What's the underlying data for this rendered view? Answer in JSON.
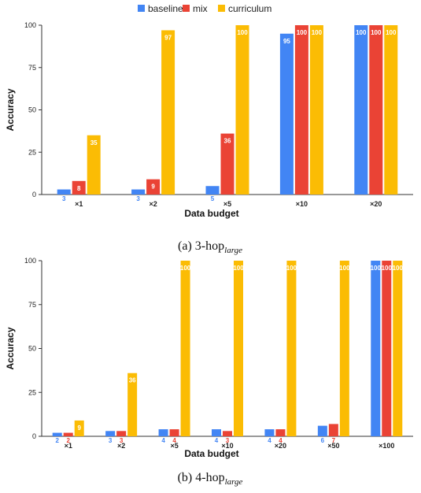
{
  "legend": [
    {
      "label": "baseline",
      "color": "#4285F4"
    },
    {
      "label": "mix",
      "color": "#EA4335"
    },
    {
      "label": "curriculum",
      "color": "#FBBC04"
    }
  ],
  "chart_data": [
    {
      "type": "bar",
      "caption": "(a) 3-hop",
      "caption_subscript": "large",
      "xlabel": "Data budget",
      "ylabel": "Accuracy",
      "ylim": [
        0,
        100
      ],
      "yticks": [
        0,
        25,
        50,
        75,
        100
      ],
      "grid": false,
      "legend_position": "top",
      "categories": [
        "×1",
        "×2",
        "×5",
        "×10",
        "×20"
      ],
      "series": [
        {
          "name": "baseline",
          "values": [
            3,
            3,
            5,
            95,
            100
          ]
        },
        {
          "name": "mix",
          "values": [
            8,
            9,
            36,
            100,
            100
          ]
        },
        {
          "name": "curriculum",
          "values": [
            35,
            97,
            100,
            100,
            100
          ]
        }
      ]
    },
    {
      "type": "bar",
      "caption": "(b) 4-hop",
      "caption_subscript": "large",
      "xlabel": "Data budget",
      "ylabel": "Accuracy",
      "ylim": [
        0,
        100
      ],
      "yticks": [
        0,
        25,
        50,
        75,
        100
      ],
      "grid": false,
      "legend_position": "none",
      "categories": [
        "×1",
        "×2",
        "×5",
        "×10",
        "×20",
        "×50",
        "×100"
      ],
      "series": [
        {
          "name": "baseline",
          "values": [
            2,
            3,
            4,
            4,
            4,
            6,
            100
          ]
        },
        {
          "name": "mix",
          "values": [
            2,
            3,
            4,
            3,
            4,
            7,
            100
          ]
        },
        {
          "name": "curriculum",
          "values": [
            9,
            36,
            100,
            100,
            100,
            100,
            100
          ]
        }
      ]
    }
  ]
}
